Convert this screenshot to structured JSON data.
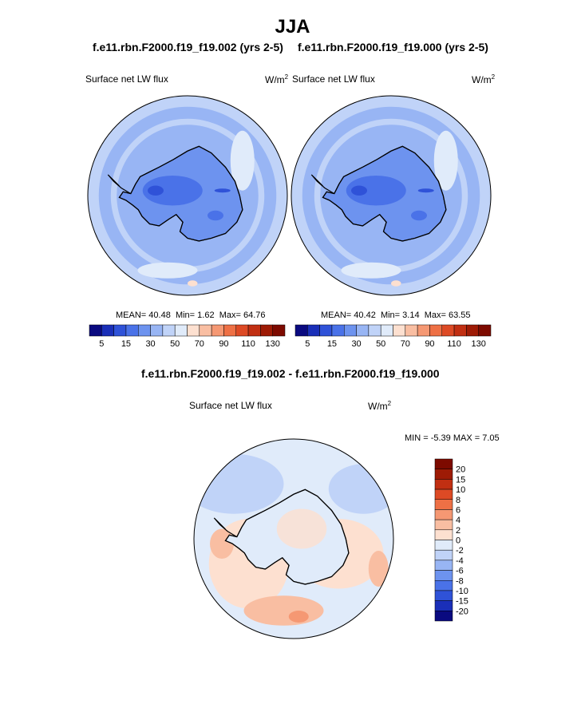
{
  "page_title": "JJA",
  "panels": [
    {
      "case": "f.e11.rbn.F2000.f19_f19.002 (yrs 2-5)",
      "var_label": "Surface net LW flux",
      "units": "W/m",
      "units_exp": "2",
      "mean_label": "MEAN=",
      "mean": "40.48",
      "min_label": "Min=",
      "min": "1.62",
      "max_label": "Max=",
      "max": "64.76"
    },
    {
      "case": "f.e11.rbn.F2000.f19_f19.000 (yrs 2-5)",
      "var_label": "Surface net LW flux",
      "units": "W/m",
      "units_exp": "2",
      "mean_label": "MEAN=",
      "mean": "40.42",
      "min_label": "Min=",
      "min": "3.14",
      "max_label": "Max=",
      "max": "63.55"
    }
  ],
  "diff_panel": {
    "title": "f.e11.rbn.F2000.f19_f19.002 - f.e11.rbn.F2000.f19_f19.000",
    "var_label": "Surface net LW flux",
    "units": "W/m",
    "units_exp": "2",
    "minmax_text": "MIN =  -5.39 MAX =   7.05"
  },
  "chart_data": [
    {
      "type": "heatmap",
      "projection": "south polar stereographic",
      "title": "f.e11.rbn.F2000.f19_f19.002 (yrs 2-5)",
      "variable": "Surface net LW flux",
      "units": "W/m2",
      "stats": {
        "mean": 40.48,
        "min": 1.62,
        "max": 64.76
      },
      "colorbar_levels": [
        5,
        10,
        15,
        20,
        30,
        40,
        50,
        60,
        70,
        80,
        90,
        100,
        110,
        120,
        130
      ],
      "colorbar_tick_labels": [
        "5",
        "15",
        "30",
        "50",
        "70",
        "90",
        "110",
        "130"
      ]
    },
    {
      "type": "heatmap",
      "projection": "south polar stereographic",
      "title": "f.e11.rbn.F2000.f19_f19.000 (yrs 2-5)",
      "variable": "Surface net LW flux",
      "units": "W/m2",
      "stats": {
        "mean": 40.42,
        "min": 3.14,
        "max": 63.55
      },
      "colorbar_levels": [
        5,
        10,
        15,
        20,
        30,
        40,
        50,
        60,
        70,
        80,
        90,
        100,
        110,
        120,
        130
      ],
      "colorbar_tick_labels": [
        "5",
        "15",
        "30",
        "50",
        "70",
        "90",
        "110",
        "130"
      ]
    },
    {
      "type": "heatmap",
      "projection": "south polar stereographic",
      "title": "f.e11.rbn.F2000.f19_f19.002 - f.e11.rbn.F2000.f19_f19.000",
      "variable": "Surface net LW flux",
      "units": "W/m2",
      "stats": {
        "min": -5.39,
        "max": 7.05
      },
      "colorbar_levels": [
        -20,
        -15,
        -10,
        -8,
        -6,
        -4,
        -2,
        0,
        2,
        4,
        6,
        8,
        10,
        15,
        20
      ],
      "colorbar_tick_labels": [
        "20",
        "15",
        "10",
        "8",
        "6",
        "4",
        "2",
        "0",
        "-2",
        "-4",
        "-6",
        "-8",
        "-10",
        "-15",
        "-20"
      ]
    }
  ],
  "colors": {
    "abs_scale": [
      "#0a0a80",
      "#1a2fb8",
      "#2f52d8",
      "#4a72e8",
      "#6d93ef",
      "#98b5f4",
      "#c0d3f8",
      "#e0ebfa",
      "#fde0d0",
      "#f9bea2",
      "#f59873",
      "#ee7045",
      "#dd4a25",
      "#c12f12",
      "#9e1b05",
      "#7d0a00"
    ],
    "diff_scale": [
      "#0a0a80",
      "#1a2fb8",
      "#2f52d8",
      "#4a72e8",
      "#6d93ef",
      "#98b5f4",
      "#c0d3f8",
      "#e0ebfa",
      "#fde0d0",
      "#f9bea2",
      "#f59873",
      "#ee7045",
      "#dd4a25",
      "#c12f12",
      "#9e1b05",
      "#7d0a00"
    ]
  }
}
